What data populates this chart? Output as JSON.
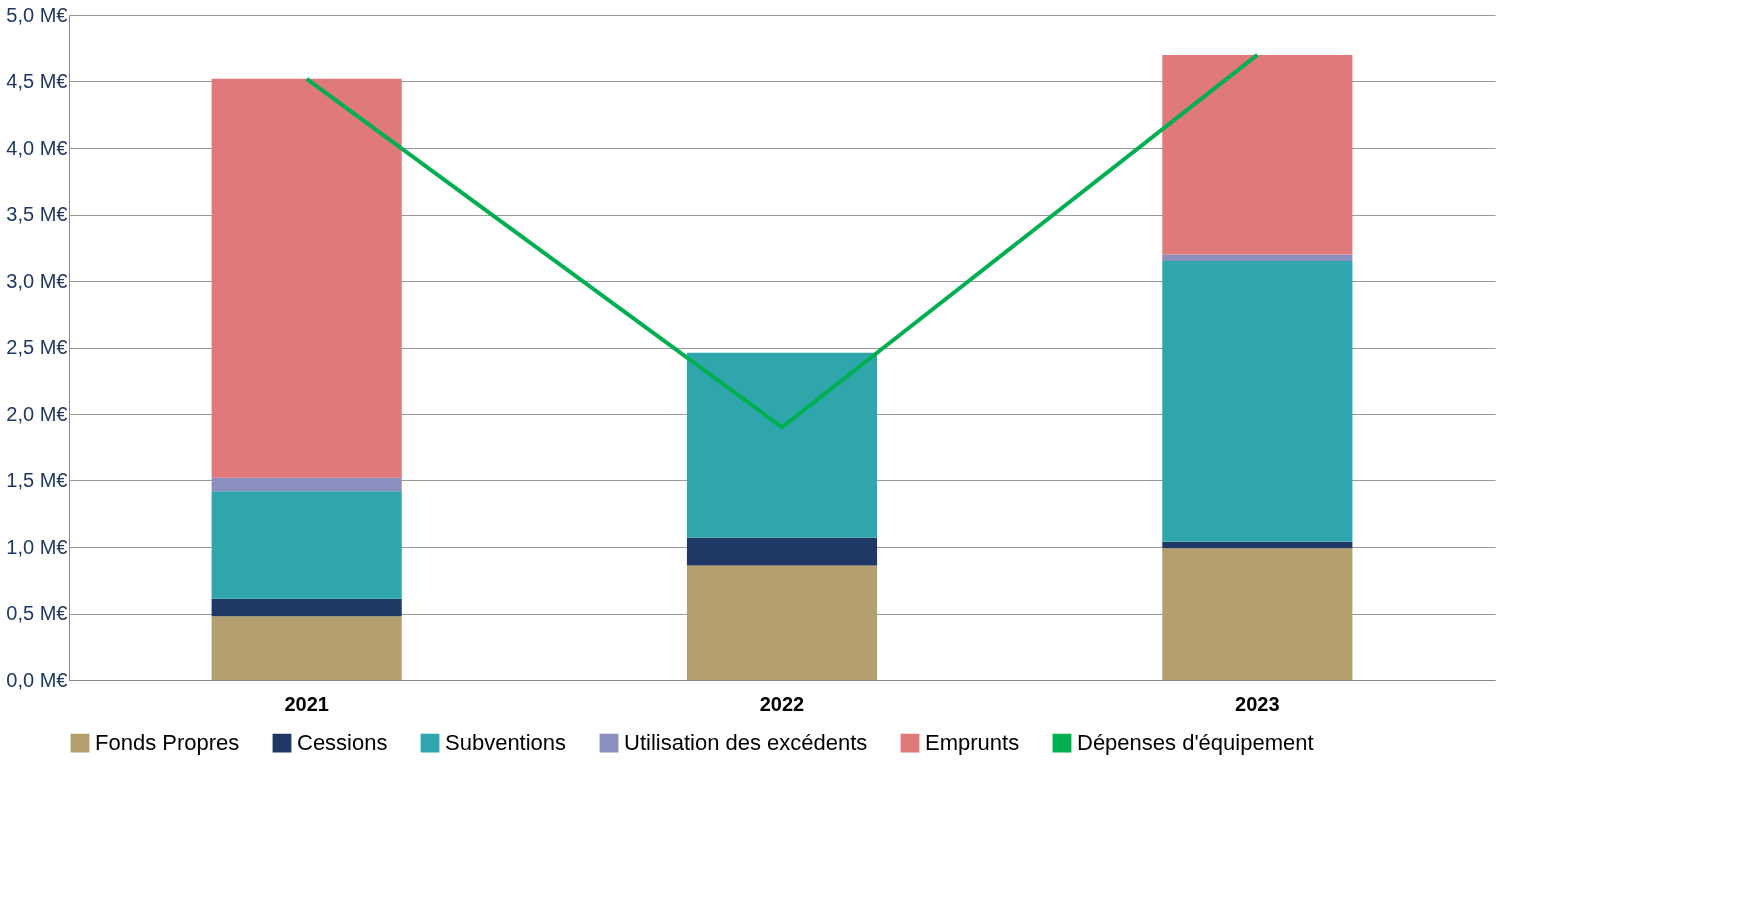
{
  "chart_data": {
    "type": "bar",
    "stacked": true,
    "categories": [
      "2021",
      "2022",
      "2023"
    ],
    "series": [
      {
        "name": "Fonds Propres",
        "color": "#b3a06e",
        "values": [
          0.48,
          0.86,
          0.99
        ]
      },
      {
        "name": "Cessions",
        "color": "#1f3864",
        "values": [
          0.13,
          0.21,
          0.05
        ]
      },
      {
        "name": "Subventions",
        "color": "#2fa6ab",
        "values": [
          0.81,
          1.39,
          2.11
        ]
      },
      {
        "name": "Utilisation des excédents",
        "color": "#8a8fc0",
        "values": [
          0.1,
          null,
          0.05
        ]
      },
      {
        "name": "Emprunts",
        "color": "#e07a7a",
        "values": [
          3.0,
          null,
          1.5
        ]
      },
      {
        "name": "Dépenses d'équipement",
        "type": "line",
        "color": "#00b050",
        "values": [
          4.52,
          1.9,
          4.7
        ]
      }
    ],
    "ylim": [
      0,
      5
    ],
    "yticks": [
      {
        "value": 0,
        "label": "0,0 M€"
      },
      {
        "value": 0.5,
        "label": "0,5 M€"
      },
      {
        "value": 1,
        "label": "1,0 M€"
      },
      {
        "value": 1.5,
        "label": "1,5 M€"
      },
      {
        "value": 2,
        "label": "2,0 M€"
      },
      {
        "value": 2.5,
        "label": "2,5 M€"
      },
      {
        "value": 3,
        "label": "3,0 M€"
      },
      {
        "value": 3.5,
        "label": "3,5 M€"
      },
      {
        "value": 4,
        "label": "4,0 M€"
      },
      {
        "value": 4.5,
        "label": "4,5 M€"
      },
      {
        "value": 5,
        "label": "5,0 M€"
      }
    ],
    "grid": "y",
    "legend": "bottom",
    "marker": "none",
    "line_style": "solid"
  }
}
